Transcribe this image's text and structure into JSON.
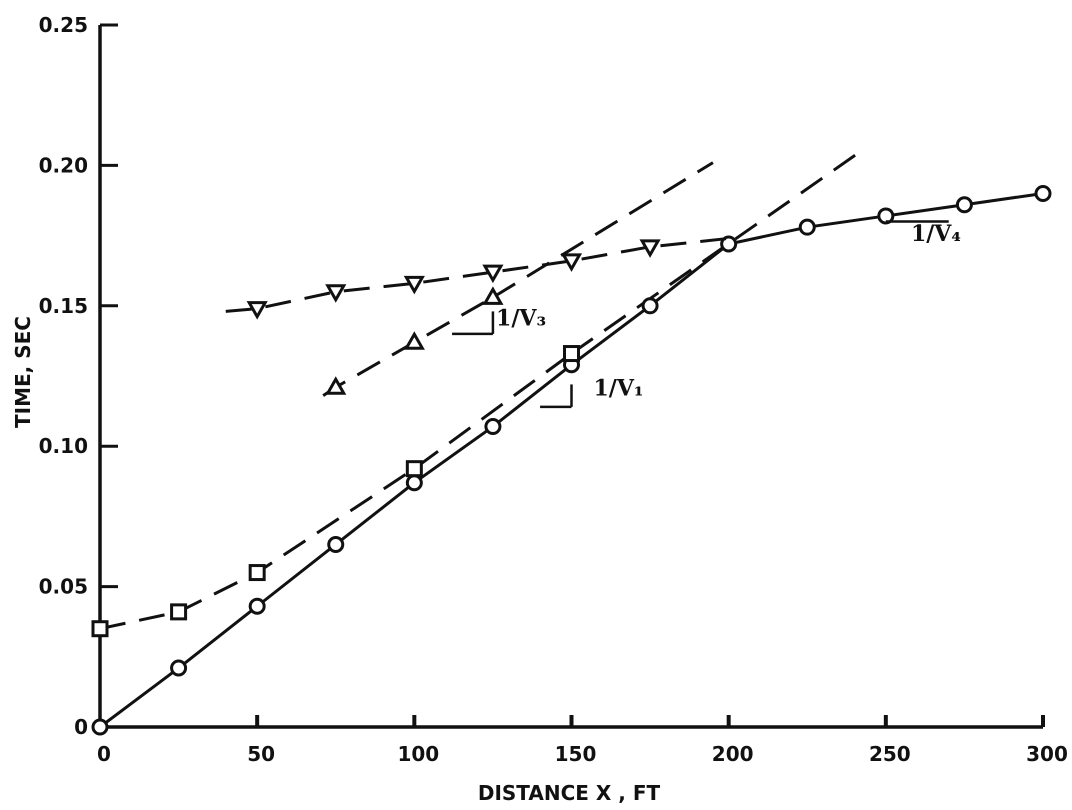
{
  "chart_data": {
    "type": "line",
    "xlabel": "DISTANCE X , FT",
    "ylabel": "TIME, SEC",
    "xlim": [
      0,
      300
    ],
    "ylim": [
      0,
      0.25
    ],
    "xticks": [
      "0",
      "50",
      "100",
      "150",
      "200",
      "250",
      "300"
    ],
    "yticks": [
      "0",
      "0.05",
      "0.10",
      "0.15",
      "0.20",
      "0.25"
    ],
    "grid": false,
    "series": [
      {
        "marker": "circle",
        "line": "solid",
        "points": [
          [
            0,
            0
          ],
          [
            25,
            0.021
          ],
          [
            50,
            0.043
          ],
          [
            75,
            0.065
          ],
          [
            100,
            0.087
          ],
          [
            125,
            0.107
          ],
          [
            150,
            0.129
          ],
          [
            175,
            0.15
          ],
          [
            200,
            0.172
          ],
          [
            225,
            0.178
          ],
          [
            250,
            0.182
          ],
          [
            275,
            0.186
          ],
          [
            300,
            0.19
          ]
        ]
      },
      {
        "marker": "square",
        "line": "dashed",
        "points": [
          [
            0,
            0.035
          ],
          [
            25,
            0.041
          ],
          [
            50,
            0.055
          ],
          [
            100,
            0.092
          ],
          [
            150,
            0.133
          ]
        ]
      },
      {
        "marker": "triangle-up",
        "line": "dashed",
        "points": [
          [
            75,
            0.121
          ],
          [
            100,
            0.137
          ],
          [
            125,
            0.153
          ]
        ]
      },
      {
        "marker": "triangle-down",
        "line": "dashed",
        "points": [
          [
            50,
            0.149
          ],
          [
            75,
            0.155
          ],
          [
            100,
            0.158
          ],
          [
            125,
            0.162
          ],
          [
            150,
            0.166
          ],
          [
            175,
            0.171
          ]
        ]
      }
    ],
    "reference_lines": [
      {
        "name": "V1 extension",
        "from": [
          150,
          0.133
        ],
        "to": [
          242,
          0.205
        ]
      },
      {
        "name": "V3 extension",
        "from": [
          125,
          0.153
        ],
        "to": [
          195,
          0.201
        ]
      }
    ],
    "annotations": [
      {
        "text": "1/V₁",
        "x": 157,
        "y": 0.118
      },
      {
        "text": "1/V₃",
        "x": 126,
        "y": 0.143
      },
      {
        "text": "1/V₄",
        "x": 258,
        "y": 0.173
      }
    ]
  }
}
